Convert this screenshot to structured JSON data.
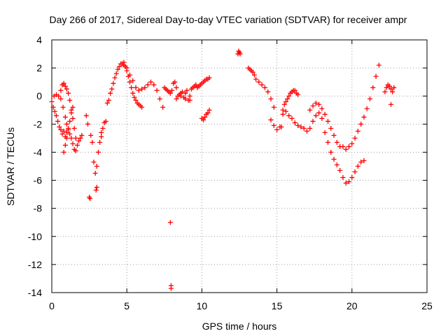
{
  "colors": {
    "series": "#ff0000",
    "grid": "#a0a0a0",
    "axis": "#000000",
    "background": "#ffffff"
  },
  "chart_data": {
    "type": "scatter",
    "title": "Day 266 of 2017, Sidereal Day-to-day VTEC variation (SDTVAR) for receiver ampr",
    "xlabel": "GPS time / hours",
    "ylabel": "SDTVAR / TECUs",
    "xlim": [
      0,
      25
    ],
    "ylim": [
      -14,
      4
    ],
    "xticks": [
      0,
      5,
      10,
      15,
      20,
      25
    ],
    "xtick_labels": [
      "0",
      "5",
      "10",
      "15",
      "20",
      "25"
    ],
    "yticks": [
      4,
      2,
      0,
      -2,
      -4,
      -6,
      -8,
      -10,
      -12,
      -14
    ],
    "ytick_labels": [
      "4",
      "2",
      "0",
      "-2",
      "-4",
      "-6",
      "-8",
      "-10",
      "-12",
      "-14"
    ],
    "grid": true,
    "marker": "plus",
    "series": [
      {
        "name": "SDTVAR",
        "x": [
          0.0,
          0.1,
          0.2,
          0.3,
          0.4,
          0.5,
          0.6,
          0.7,
          0.8,
          0.9,
          1.0,
          1.1,
          1.2,
          1.3,
          1.4,
          1.5,
          1.6,
          1.7,
          1.8,
          1.9,
          2.0,
          0.6,
          0.7,
          0.8,
          0.9,
          1.0,
          1.1,
          1.2,
          1.3,
          1.4,
          1.5,
          1.6,
          0.8,
          0.9,
          1.0,
          1.1,
          1.2,
          1.3,
          1.4,
          0.15,
          0.3,
          0.45,
          0.6,
          0.75,
          0.9,
          1.0,
          2.3,
          2.4,
          2.5,
          2.6,
          2.7,
          2.8,
          2.9,
          3.0,
          3.1,
          3.2,
          3.3,
          2.55,
          2.95,
          3.0,
          3.3,
          3.4,
          3.5,
          3.6,
          3.7,
          3.8,
          3.9,
          4.0,
          4.1,
          4.2,
          4.3,
          4.4,
          4.5,
          4.6,
          4.7,
          4.8,
          4.9,
          5.0,
          5.1,
          5.2,
          5.3,
          5.4,
          5.5,
          5.6,
          5.7,
          5.8,
          5.9,
          6.0,
          4.8,
          5.0,
          5.2,
          5.4,
          5.6,
          5.8,
          6.0,
          6.2,
          6.4,
          6.6,
          6.8,
          7.0,
          7.2,
          7.4,
          7.5,
          7.6,
          7.7,
          7.8,
          7.9,
          8.0,
          8.1,
          8.2,
          8.3,
          8.4,
          8.5,
          8.6,
          8.7,
          8.8,
          8.9,
          9.0,
          9.1,
          9.2,
          9.3,
          9.4,
          9.5,
          9.6,
          9.7,
          9.8,
          9.9,
          10.0,
          10.1,
          10.2,
          10.3,
          10.4,
          10.5,
          8.3,
          8.6,
          8.9,
          9.2,
          10.0,
          10.1,
          10.2,
          10.3,
          10.4,
          10.5,
          7.9,
          7.95,
          7.95,
          12.4,
          12.45,
          12.5,
          12.55,
          13.1,
          13.2,
          13.3,
          13.4,
          13.5,
          13.6,
          13.8,
          14.0,
          14.2,
          14.4,
          14.6,
          14.8,
          14.6,
          14.8,
          15.0,
          15.2,
          15.3,
          15.4,
          15.5,
          15.6,
          15.7,
          15.8,
          15.9,
          16.0,
          16.1,
          16.2,
          16.3,
          16.4,
          15.4,
          15.6,
          15.8,
          16.0,
          16.2,
          16.4,
          16.6,
          16.8,
          17.0,
          17.2,
          17.4,
          17.6,
          17.8,
          18.0,
          18.2,
          18.4,
          18.6,
          18.8,
          19.0,
          19.2,
          19.4,
          19.6,
          19.8,
          20.0,
          20.2,
          20.4,
          20.6,
          20.8,
          17.2,
          17.4,
          17.6,
          17.8,
          18.0,
          18.2,
          18.4,
          18.6,
          18.8,
          19.0,
          19.2,
          19.4,
          19.6,
          19.8,
          20.0,
          20.2,
          20.4,
          20.6,
          20.8,
          21.0,
          21.2,
          21.4,
          21.6,
          21.8,
          22.2,
          22.3,
          22.4,
          22.5,
          22.6,
          22.7,
          22.6,
          22.8
        ],
        "y": [
          -0.4,
          -0.8,
          -1.1,
          -1.4,
          -1.8,
          -2.2,
          -2.4,
          -2.7,
          -2.5,
          -2.9,
          -2.6,
          -2.3,
          -2.7,
          -3.0,
          -3.4,
          -3.8,
          -3.9,
          -3.5,
          -3.2,
          -3.0,
          -2.8,
          0.4,
          0.8,
          0.9,
          0.7,
          0.5,
          0.2,
          -0.3,
          -1.0,
          -1.6,
          -2.3,
          -3.0,
          -4.0,
          -3.5,
          -3.0,
          -2.4,
          -1.8,
          -1.2,
          -0.8,
          0.0,
          0.1,
          0.0,
          -0.2,
          -0.8,
          -1.5,
          -2.0,
          -1.4,
          -2.0,
          -7.2,
          -2.8,
          -3.3,
          -4.7,
          -5.5,
          -6.5,
          -4.0,
          -3.3,
          -2.9,
          -7.3,
          -6.7,
          -5.0,
          -2.6,
          -2.3,
          -1.9,
          -1.8,
          -0.5,
          -0.3,
          0.2,
          0.5,
          0.9,
          1.3,
          1.6,
          1.9,
          2.1,
          2.3,
          2.3,
          2.4,
          2.1,
          1.8,
          1.4,
          1.0,
          0.6,
          0.2,
          -0.1,
          -0.3,
          -0.5,
          -0.6,
          -0.7,
          -0.8,
          2.2,
          2.0,
          1.5,
          1.1,
          0.6,
          0.4,
          0.5,
          0.6,
          0.8,
          1.0,
          0.8,
          0.4,
          -0.2,
          -0.8,
          0.6,
          0.5,
          0.4,
          0.3,
          0.2,
          0.4,
          0.9,
          1.0,
          0.6,
          0.0,
          0.1,
          0.2,
          0.3,
          -0.1,
          0.2,
          0.4,
          -0.3,
          0.0,
          0.5,
          0.6,
          0.7,
          0.8,
          0.6,
          0.7,
          0.8,
          0.9,
          1.0,
          1.1,
          1.2,
          1.2,
          1.3,
          -0.2,
          0.0,
          -0.2,
          -0.3,
          -1.6,
          -1.7,
          -1.5,
          -1.3,
          -1.2,
          -1.0,
          -9.0,
          -13.5,
          -13.7,
          3.0,
          3.2,
          3.1,
          3.0,
          2.0,
          1.9,
          1.8,
          1.7,
          1.5,
          1.2,
          1.0,
          0.8,
          0.6,
          0.3,
          -0.2,
          -0.8,
          -1.7,
          -2.1,
          -2.4,
          -2.2,
          -2.2,
          -1.0,
          -0.6,
          -0.4,
          -0.2,
          0.0,
          0.2,
          0.3,
          0.4,
          0.4,
          0.2,
          0.1,
          -1.3,
          -1.1,
          -1.4,
          -1.6,
          -1.9,
          -2.1,
          -2.2,
          -2.3,
          -2.5,
          -2.3,
          -1.8,
          -1.4,
          -1.2,
          -1.6,
          -2.6,
          -3.3,
          -4.0,
          -4.5,
          -4.9,
          -5.3,
          -5.8,
          -6.2,
          -6.1,
          -5.8,
          -5.4,
          -5.0,
          -4.7,
          -4.6,
          -1.0,
          -0.7,
          -0.5,
          -0.6,
          -0.9,
          -1.3,
          -1.8,
          -2.3,
          -2.8,
          -3.3,
          -3.6,
          -3.6,
          -3.8,
          -3.6,
          -3.4,
          -3.0,
          -2.5,
          -2.0,
          -1.5,
          -0.9,
          -0.2,
          0.6,
          1.4,
          2.2,
          0.3,
          0.6,
          0.8,
          0.7,
          0.5,
          0.3,
          -0.6,
          0.6
        ]
      }
    ]
  }
}
